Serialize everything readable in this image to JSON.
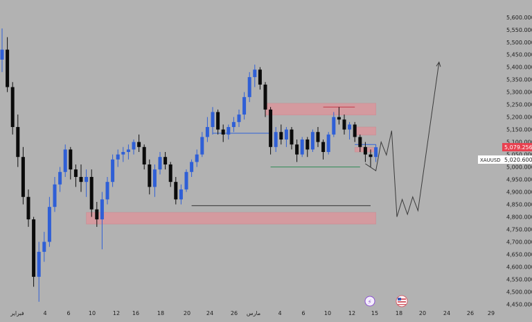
{
  "colors": {
    "background": "#b2b2b2",
    "bull": "#2f5fd6",
    "bear": "#0b0b0b",
    "zone": "#d49a9f",
    "zone_border": "#cc8790",
    "axis_text": "#1c1c1c",
    "price_badge": "#e8404f",
    "guide_green": "#2e8a55",
    "guide_blue": "#2f63d8",
    "guide_red": "#c23a48"
  },
  "icons": {
    "flash_event": "lightning-icon",
    "us_event": "us-flag-icon"
  },
  "chart_data": {
    "type": "candlestick",
    "symbol": "XAUUSD",
    "current_price": "5,079.256",
    "marker_price": "5,020.600",
    "ylim": [
      4440,
      5630
    ],
    "y_ticks": [
      "5,600.000",
      "5,550.000",
      "5,500.000",
      "5,450.000",
      "5,400.000",
      "5,350.000",
      "5,300.000",
      "5,250.000",
      "5,200.000",
      "5,150.000",
      "5,100.000",
      "5,050.000",
      "5,000.000",
      "4,950.000",
      "4,900.000",
      "4,850.000",
      "4,800.000",
      "4,750.000",
      "4,700.000",
      "4,650.000",
      "4,600.000",
      "4,550.000",
      "4,500.000",
      "4,450.000"
    ],
    "x_ticks": [
      "فبراير",
      "4",
      "6",
      "10",
      "12",
      "16",
      "18",
      "20",
      "24",
      "26",
      "مارس",
      "4",
      "6",
      "10",
      "12",
      "15",
      "18",
      "20",
      "24",
      "26",
      "29"
    ],
    "candles": [
      [
        5430,
        5555,
        5380,
        5470
      ],
      [
        5470,
        5520,
        5300,
        5320
      ],
      [
        5320,
        5340,
        5130,
        5160
      ],
      [
        5160,
        5210,
        5000,
        5040
      ],
      [
        5040,
        5080,
        4850,
        4880
      ],
      [
        4880,
        4910,
        4760,
        4790
      ],
      [
        4790,
        4800,
        4520,
        4560
      ],
      [
        4560,
        4700,
        4460,
        4660
      ],
      [
        4660,
        4740,
        4620,
        4700
      ],
      [
        4700,
        4880,
        4680,
        4840
      ],
      [
        4840,
        4960,
        4820,
        4930
      ],
      [
        4930,
        5000,
        4900,
        4980
      ],
      [
        4980,
        5090,
        4960,
        5070
      ],
      [
        5070,
        5080,
        4950,
        4990
      ],
      [
        4990,
        5010,
        4920,
        4960
      ],
      [
        4960,
        5010,
        4900,
        4940
      ],
      [
        4940,
        4990,
        4880,
        4960
      ],
      [
        4960,
        4990,
        4800,
        4830
      ],
      [
        4830,
        4860,
        4760,
        4790
      ],
      [
        4790,
        4900,
        4670,
        4870
      ],
      [
        4870,
        4960,
        4850,
        4940
      ],
      [
        4940,
        5050,
        4920,
        5030
      ],
      [
        5030,
        5070,
        5000,
        5050
      ],
      [
        5050,
        5080,
        5020,
        5060
      ],
      [
        5060,
        5090,
        5030,
        5070
      ],
      [
        5070,
        5110,
        5050,
        5100
      ],
      [
        5100,
        5130,
        5060,
        5080
      ],
      [
        5080,
        5090,
        4990,
        5010
      ],
      [
        5010,
        5030,
        4890,
        4920
      ],
      [
        4920,
        5010,
        4880,
        4990
      ],
      [
        4990,
        5060,
        4970,
        5040
      ],
      [
        5040,
        5060,
        4990,
        5010
      ],
      [
        5010,
        5020,
        4920,
        4940
      ],
      [
        4940,
        4960,
        4850,
        4870
      ],
      [
        4870,
        4930,
        4850,
        4910
      ],
      [
        4910,
        4990,
        4900,
        4980
      ],
      [
        4980,
        5030,
        4960,
        5020
      ],
      [
        5020,
        5070,
        5000,
        5050
      ],
      [
        5050,
        5140,
        5040,
        5120
      ],
      [
        5120,
        5200,
        5100,
        5160
      ],
      [
        5160,
        5240,
        5130,
        5220
      ],
      [
        5220,
        5230,
        5130,
        5150
      ],
      [
        5150,
        5170,
        5100,
        5130
      ],
      [
        5130,
        5170,
        5110,
        5160
      ],
      [
        5160,
        5200,
        5140,
        5180
      ],
      [
        5180,
        5230,
        5160,
        5210
      ],
      [
        5210,
        5300,
        5190,
        5280
      ],
      [
        5280,
        5380,
        5260,
        5360
      ],
      [
        5360,
        5410,
        5320,
        5390
      ],
      [
        5390,
        5400,
        5310,
        5330
      ],
      [
        5330,
        5340,
        5200,
        5230
      ],
      [
        5230,
        5240,
        5050,
        5080
      ],
      [
        5080,
        5160,
        5060,
        5140
      ],
      [
        5140,
        5170,
        5090,
        5110
      ],
      [
        5110,
        5160,
        5080,
        5150
      ],
      [
        5150,
        5160,
        5070,
        5090
      ],
      [
        5090,
        5110,
        5020,
        5050
      ],
      [
        5050,
        5120,
        5040,
        5110
      ],
      [
        5110,
        5120,
        5040,
        5070
      ],
      [
        5070,
        5150,
        5060,
        5140
      ],
      [
        5140,
        5160,
        5080,
        5100
      ],
      [
        5100,
        5110,
        5030,
        5060
      ],
      [
        5060,
        5140,
        5050,
        5130
      ],
      [
        5130,
        5220,
        5120,
        5200
      ],
      [
        5200,
        5240,
        5170,
        5190
      ],
      [
        5190,
        5210,
        5130,
        5150
      ],
      [
        5150,
        5180,
        5110,
        5170
      ],
      [
        5170,
        5180,
        5100,
        5120
      ],
      [
        5120,
        5130,
        5060,
        5080
      ],
      [
        5080,
        5100,
        5020,
        5050
      ],
      [
        5050,
        5070,
        5000,
        5040
      ],
      [
        5040,
        5090,
        5020,
        5079
      ]
    ],
    "zones": [
      {
        "low": 5208,
        "high": 5255,
        "from": 50,
        "to": 71
      },
      {
        "low": 5128,
        "high": 5160,
        "from": 67,
        "to": 71
      },
      {
        "low": 5060,
        "high": 5078,
        "from": 67,
        "to": 71
      },
      {
        "low": 4771,
        "high": 4818,
        "from": 16,
        "to": 71
      }
    ],
    "levels": [
      {
        "price": 4845,
        "from": 36,
        "to": 70,
        "role": "support"
      },
      {
        "price": 5000,
        "from": 51,
        "to": 68,
        "role": "green"
      },
      {
        "price": 5135,
        "from": 40,
        "to": 51,
        "role": "blue"
      },
      {
        "price": 5240,
        "from": 61,
        "to": 67,
        "role": "red"
      },
      {
        "price": 5090,
        "from": 67,
        "to": 71,
        "role": "blue"
      }
    ],
    "projection": [
      {
        "i": 69,
        "p": 5013
      },
      {
        "i": 71,
        "p": 4985
      },
      {
        "i": 72,
        "p": 5100
      },
      {
        "i": 73,
        "p": 5048
      },
      {
        "i": 74,
        "p": 5145
      },
      {
        "i": 75,
        "p": 4800
      },
      {
        "i": 76,
        "p": 4870
      },
      {
        "i": 77,
        "p": 4810
      },
      {
        "i": 78,
        "p": 4880
      },
      {
        "i": 79,
        "p": 4825
      },
      {
        "i": 83,
        "p": 5420
      }
    ]
  }
}
